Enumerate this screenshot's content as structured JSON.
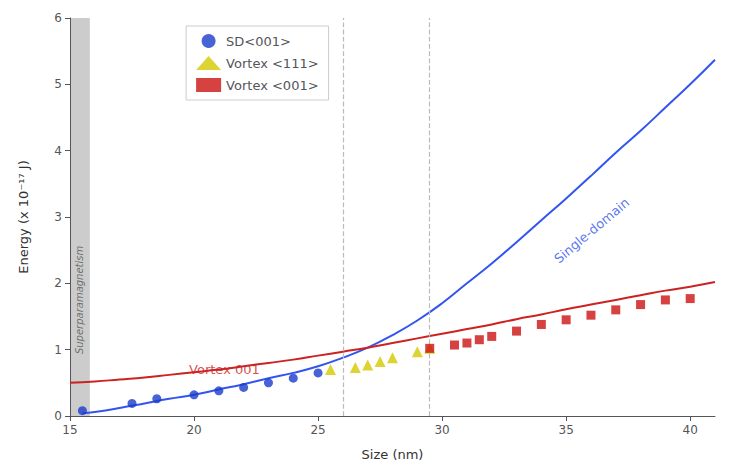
{
  "chart_data": {
    "type": "scatter",
    "xlabel": "Size (nm)",
    "ylabel": "Energy (x 10⁻¹⁷ J)",
    "xlim": [
      15,
      41
    ],
    "ylim": [
      0,
      6
    ],
    "xticks": [
      15,
      20,
      25,
      30,
      35,
      40
    ],
    "yticks": [
      0,
      1,
      2,
      3,
      4,
      5,
      6
    ],
    "grid": false,
    "legend": "upper left",
    "shaded_region": [
      15,
      15.8
    ],
    "vlines": [
      26.0,
      29.5
    ],
    "series": [
      {
        "type": "line",
        "color": "#3355ee",
        "x": [
          15.5,
          16,
          17,
          18,
          19,
          20,
          21,
          22,
          23,
          24,
          25,
          26,
          27,
          28,
          29,
          30,
          31,
          32,
          33,
          34,
          35,
          36,
          37,
          38,
          39,
          40,
          41
        ],
        "values": [
          0.04,
          0.06,
          0.12,
          0.19,
          0.26,
          0.32,
          0.4,
          0.48,
          0.57,
          0.65,
          0.75,
          0.88,
          1.03,
          1.22,
          1.44,
          1.7,
          2.0,
          2.3,
          2.62,
          2.95,
          3.28,
          3.62,
          3.97,
          4.3,
          4.65,
          5.0,
          5.37
        ]
      },
      {
        "type": "line",
        "color": "#cc2222",
        "x": [
          15,
          16,
          17,
          18,
          19,
          20,
          21,
          22,
          23,
          24,
          25,
          26,
          27,
          28,
          29,
          30,
          31,
          32,
          33,
          34,
          35,
          36,
          37,
          38,
          39,
          40,
          41
        ],
        "values": [
          0.5,
          0.52,
          0.55,
          0.58,
          0.62,
          0.66,
          0.7,
          0.75,
          0.8,
          0.85,
          0.91,
          0.97,
          1.03,
          1.1,
          1.17,
          1.24,
          1.31,
          1.38,
          1.46,
          1.53,
          1.61,
          1.68,
          1.75,
          1.82,
          1.89,
          1.95,
          2.02
        ]
      },
      {
        "type": "scatter",
        "name": "SD<001>",
        "color": "#1a3ccc",
        "marker": "circle",
        "x": [
          15.5,
          17.5,
          18.5,
          20,
          21,
          22,
          23,
          24,
          25
        ],
        "values": [
          0.08,
          0.19,
          0.26,
          0.32,
          0.38,
          0.43,
          0.5,
          0.57,
          0.65
        ]
      },
      {
        "type": "scatter",
        "name": "Vortex <111>",
        "color": "#d4c800",
        "marker": "triangle",
        "x": [
          25.5,
          26.5,
          27.0,
          27.5,
          28.0,
          29.0,
          29.5
        ],
        "values": [
          0.7,
          0.73,
          0.77,
          0.82,
          0.88,
          0.97,
          1.02
        ]
      },
      {
        "type": "scatter",
        "name": "Vortex <001>",
        "color": "#cc1111",
        "marker": "square",
        "x": [
          29.5,
          30.5,
          31.0,
          31.5,
          32.0,
          33.0,
          34.0,
          35.0,
          36.0,
          37.0,
          38.0,
          39.0,
          40.0
        ],
        "values": [
          1.02,
          1.07,
          1.1,
          1.15,
          1.2,
          1.28,
          1.38,
          1.45,
          1.52,
          1.6,
          1.68,
          1.75,
          1.77
        ]
      }
    ],
    "annotations": [
      {
        "text": "Single-domain",
        "x": 36.2,
        "y": 2.72,
        "color": "#3355ee"
      },
      {
        "text": "Vortex 001",
        "x": 19.8,
        "y": 0.6,
        "color": "#cc2222"
      },
      {
        "text": "Superparamagnetism",
        "x": 15.4,
        "y": 1.75,
        "color": "#555555"
      }
    ]
  }
}
